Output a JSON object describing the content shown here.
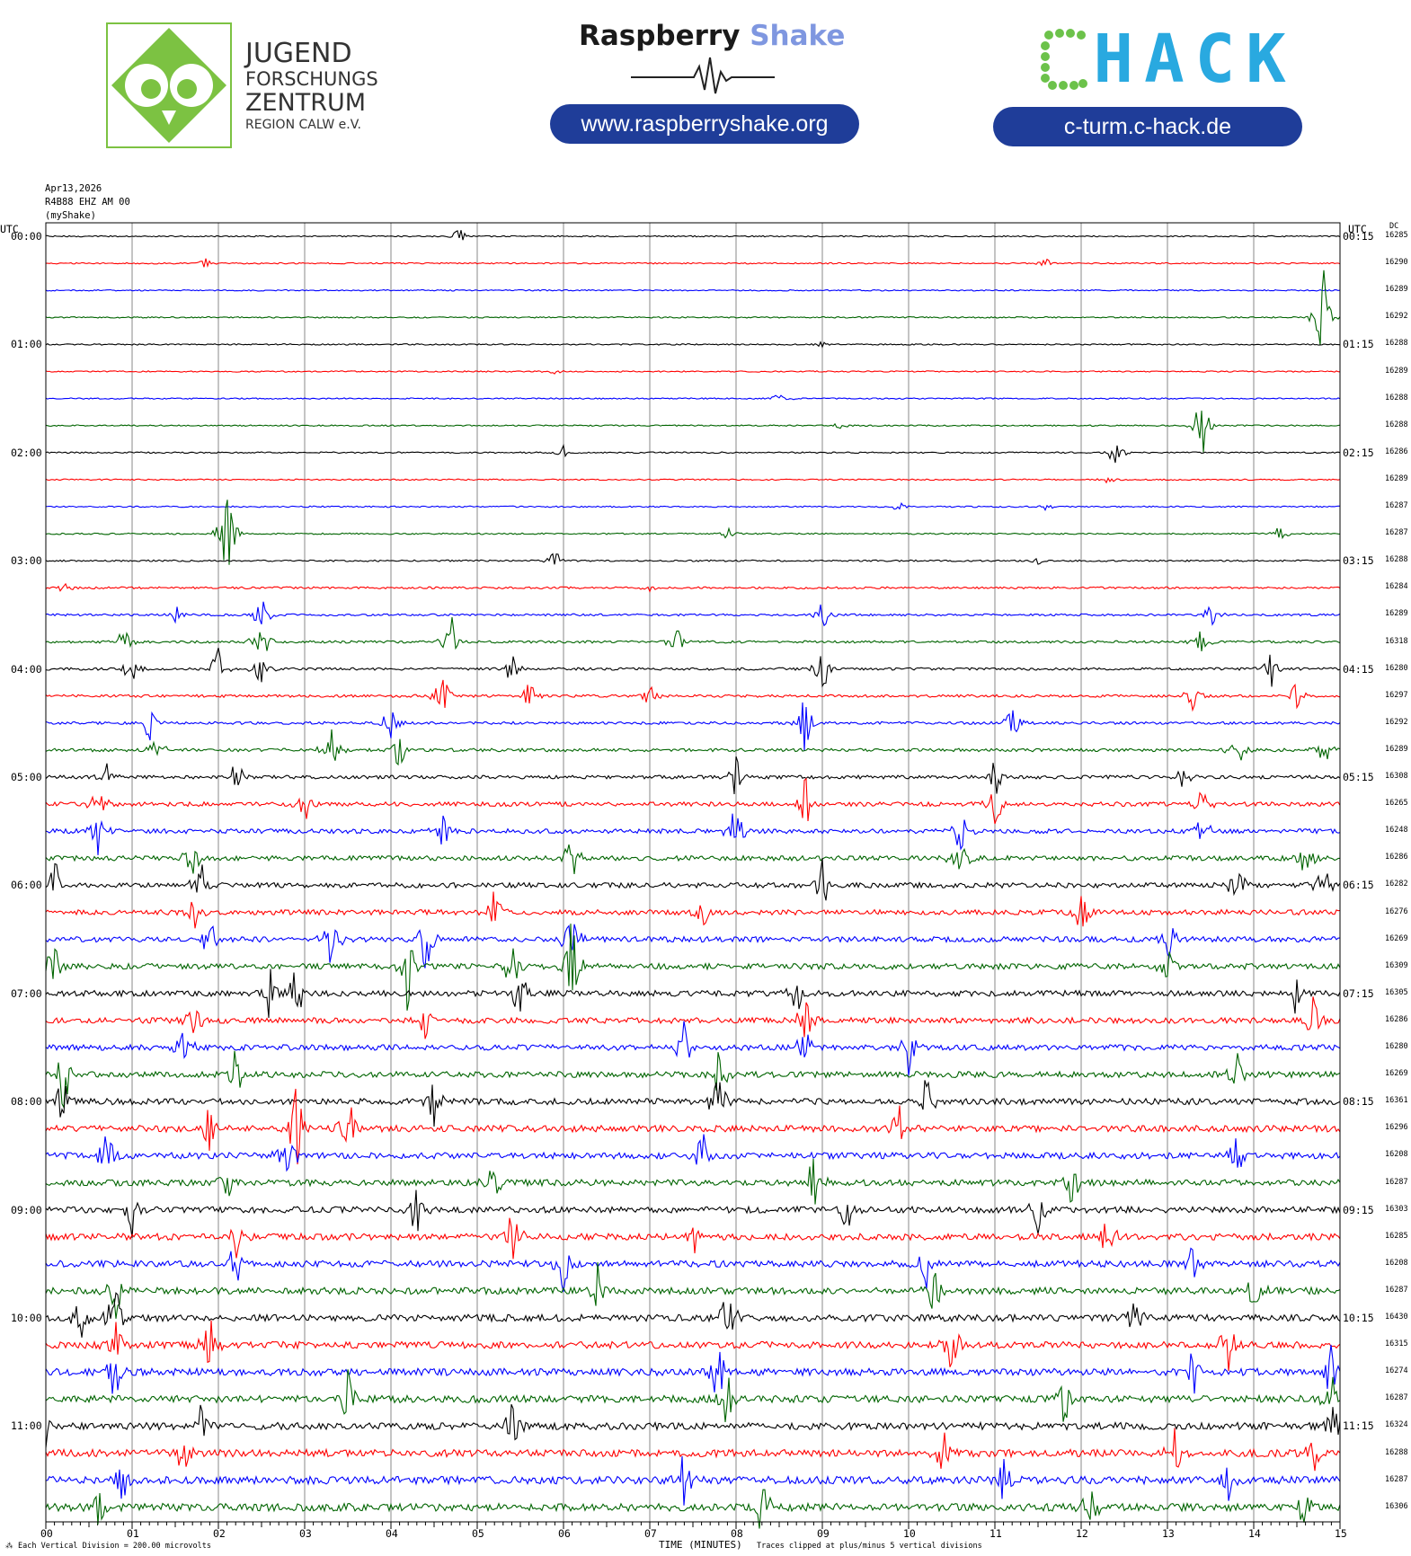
{
  "header": {
    "jfz_lines": [
      "JUGEND",
      "FORSCHUNGS",
      "ZENTRUM",
      "REGION CALW e.V."
    ],
    "rs_title_main": "Raspberry",
    "rs_title_accent": "Shake",
    "rs_url": "www.raspberryshake.org",
    "chack_logo_text": "CHACK",
    "chack_url": "c-turm.c-hack.de",
    "colors": {
      "pill": "#1f3d99",
      "jfz_green": "#7cc242",
      "rs_accent": "#7f97e0",
      "chack_green": "#6cc24a",
      "chack_blue": "#29a9e0"
    }
  },
  "meta": {
    "date": "Apr13,2026",
    "station": "R4B88 EHZ AM 00",
    "source": "(myShake)"
  },
  "footer": {
    "scale_note": "Each Vertical Division = 200.00 microvolts",
    "xlabel": "TIME (MINUTES)",
    "clip_note": "Traces clipped at plus/minus 5 vertical divisions",
    "corner_mark": "⁂"
  },
  "chart_data": {
    "type": "line",
    "title": "",
    "xlabel": "TIME (MINUTES)",
    "ylabel": "",
    "left_axis_label": "UTC",
    "right_axis_label": "UTC",
    "dc_label": "DC",
    "xlim": [
      0,
      15
    ],
    "x_ticks": [
      "00",
      "01",
      "02",
      "03",
      "04",
      "05",
      "06",
      "07",
      "08",
      "09",
      "10",
      "11",
      "12",
      "13",
      "14",
      "15"
    ],
    "grid": true,
    "trace_colors": [
      "#000000",
      "#ff0000",
      "#0000ff",
      "#006400"
    ],
    "left_hour_labels": [
      "00:00",
      "01:00",
      "02:00",
      "03:00",
      "04:00",
      "05:00",
      "06:00",
      "07:00",
      "08:00",
      "09:00",
      "10:00",
      "11:00"
    ],
    "right_hour_labels": [
      "00:15",
      "01:15",
      "02:15",
      "03:15",
      "04:15",
      "05:15",
      "06:15",
      "07:15",
      "08:15",
      "09:15",
      "10:15",
      "11:15"
    ],
    "series": [
      {
        "dc": "16285",
        "activity": 0.05,
        "events": [
          [
            4.8,
            0.6
          ]
        ]
      },
      {
        "dc": "16290",
        "activity": 0.05,
        "events": [
          [
            1.85,
            0.25
          ],
          [
            11.6,
            0.25
          ]
        ]
      },
      {
        "dc": "16289",
        "activity": 0.04,
        "events": []
      },
      {
        "dc": "16292",
        "activity": 0.05,
        "events": [
          [
            14.8,
            2.8
          ]
        ]
      },
      {
        "dc": "16288",
        "activity": 0.05,
        "events": [
          [
            9.0,
            0.2
          ]
        ]
      },
      {
        "dc": "16289",
        "activity": 0.04,
        "events": [
          [
            5.9,
            0.25
          ]
        ]
      },
      {
        "dc": "16288",
        "activity": 0.05,
        "events": [
          [
            8.5,
            0.35
          ]
        ]
      },
      {
        "dc": "16288",
        "activity": 0.05,
        "events": [
          [
            13.4,
            2.2
          ],
          [
            9.2,
            0.2
          ]
        ]
      },
      {
        "dc": "16286",
        "activity": 0.06,
        "events": [
          [
            12.4,
            0.9
          ],
          [
            6.0,
            0.35
          ]
        ]
      },
      {
        "dc": "16289",
        "activity": 0.05,
        "events": [
          [
            12.3,
            0.2
          ]
        ]
      },
      {
        "dc": "16287",
        "activity": 0.06,
        "events": [
          [
            9.9,
            0.35
          ],
          [
            11.6,
            0.35
          ]
        ]
      },
      {
        "dc": "16287",
        "activity": 0.07,
        "events": [
          [
            2.1,
            2.6
          ],
          [
            7.9,
            0.35
          ],
          [
            14.3,
            0.5
          ]
        ]
      },
      {
        "dc": "16288",
        "activity": 0.1,
        "events": [
          [
            5.9,
            0.6
          ],
          [
            11.5,
            0.2
          ]
        ]
      },
      {
        "dc": "16284",
        "activity": 0.18,
        "events": [
          [
            0.2,
            0.4
          ],
          [
            7.0,
            0.3
          ]
        ]
      },
      {
        "dc": "16289",
        "activity": 0.2,
        "events": [
          [
            1.5,
            0.5
          ],
          [
            2.5,
            1.2
          ],
          [
            9.0,
            1.0
          ],
          [
            13.5,
            0.8
          ]
        ]
      },
      {
        "dc": "16318",
        "activity": 0.25,
        "events": [
          [
            0.9,
            0.8
          ],
          [
            2.5,
            1.4
          ],
          [
            4.7,
            1.4
          ],
          [
            7.3,
            1.0
          ],
          [
            13.4,
            0.8
          ]
        ]
      },
      {
        "dc": "16280",
        "activity": 0.28,
        "events": [
          [
            1.0,
            1.0
          ],
          [
            2.0,
            1.3
          ],
          [
            2.5,
            1.0
          ],
          [
            5.4,
            1.0
          ],
          [
            9.0,
            1.6
          ],
          [
            14.2,
            1.4
          ]
        ]
      },
      {
        "dc": "16297",
        "activity": 0.3,
        "events": [
          [
            4.6,
            1.8
          ],
          [
            5.6,
            1.0
          ],
          [
            7.0,
            0.6
          ],
          [
            13.3,
            1.0
          ],
          [
            14.5,
            0.8
          ]
        ]
      },
      {
        "dc": "16292",
        "activity": 0.3,
        "events": [
          [
            1.2,
            1.0
          ],
          [
            4.0,
            1.2
          ],
          [
            8.8,
            1.8
          ],
          [
            11.2,
            1.0
          ]
        ]
      },
      {
        "dc": "16289",
        "activity": 0.4,
        "events": [
          [
            1.3,
            1.0
          ],
          [
            3.3,
            1.4
          ],
          [
            4.1,
            1.2
          ],
          [
            13.8,
            1.2
          ],
          [
            14.8,
            1.0
          ]
        ]
      },
      {
        "dc": "16308",
        "activity": 0.45,
        "events": [
          [
            0.7,
            1.0
          ],
          [
            2.2,
            1.0
          ],
          [
            8.0,
            1.3
          ],
          [
            11.0,
            1.2
          ],
          [
            13.2,
            1.0
          ]
        ]
      },
      {
        "dc": "16265",
        "activity": 0.6,
        "events": [
          [
            0.6,
            1.2
          ],
          [
            3.0,
            1.0
          ],
          [
            8.8,
            1.6
          ],
          [
            11.0,
            1.3
          ],
          [
            13.4,
            1.3
          ]
        ]
      },
      {
        "dc": "16248",
        "activity": 0.65,
        "events": [
          [
            0.6,
            1.4
          ],
          [
            4.6,
            1.2
          ],
          [
            8.0,
            1.5
          ],
          [
            10.6,
            1.3
          ],
          [
            13.4,
            1.4
          ]
        ]
      },
      {
        "dc": "16286",
        "activity": 0.7,
        "events": [
          [
            1.7,
            1.4
          ],
          [
            6.1,
            1.5
          ],
          [
            10.6,
            1.3
          ],
          [
            14.6,
            1.4
          ]
        ]
      },
      {
        "dc": "16282",
        "activity": 0.75,
        "events": [
          [
            0.1,
            1.4
          ],
          [
            1.8,
            1.4
          ],
          [
            9.0,
            1.4
          ],
          [
            13.8,
            1.5
          ],
          [
            14.8,
            1.4
          ]
        ]
      },
      {
        "dc": "16276",
        "activity": 0.75,
        "events": [
          [
            1.7,
            1.4
          ],
          [
            5.2,
            1.3
          ],
          [
            7.6,
            1.3
          ],
          [
            12.0,
            1.3
          ]
        ]
      },
      {
        "dc": "16269",
        "activity": 0.8,
        "events": [
          [
            1.9,
            1.4
          ],
          [
            3.3,
            1.6
          ],
          [
            4.4,
            2.0
          ],
          [
            6.1,
            1.8
          ],
          [
            13.0,
            1.3
          ]
        ]
      },
      {
        "dc": "16309",
        "activity": 0.85,
        "events": [
          [
            0.1,
            1.4
          ],
          [
            4.2,
            2.6
          ],
          [
            6.1,
            3.0
          ],
          [
            5.4,
            1.6
          ],
          [
            13.0,
            1.3
          ]
        ]
      },
      {
        "dc": "16305",
        "activity": 0.85,
        "events": [
          [
            2.6,
            1.4
          ],
          [
            2.9,
            1.6
          ],
          [
            5.5,
            1.6
          ],
          [
            8.7,
            1.4
          ],
          [
            14.5,
            1.3
          ]
        ]
      },
      {
        "dc": "16286",
        "activity": 0.85,
        "events": [
          [
            1.7,
            1.6
          ],
          [
            4.4,
            1.3
          ],
          [
            8.8,
            1.5
          ],
          [
            14.7,
            1.4
          ]
        ]
      },
      {
        "dc": "16280",
        "activity": 0.85,
        "events": [
          [
            1.6,
            1.3
          ],
          [
            7.4,
            1.4
          ],
          [
            8.8,
            1.6
          ],
          [
            10.0,
            1.3
          ]
        ]
      },
      {
        "dc": "16269",
        "activity": 0.9,
        "events": [
          [
            0.2,
            2.4
          ],
          [
            2.2,
            1.4
          ],
          [
            7.8,
            1.5
          ],
          [
            13.8,
            1.4
          ]
        ]
      },
      {
        "dc": "16361",
        "activity": 0.95,
        "events": [
          [
            0.2,
            1.8
          ],
          [
            4.5,
            1.5
          ],
          [
            7.8,
            1.8
          ],
          [
            10.2,
            1.3
          ]
        ]
      },
      {
        "dc": "16296",
        "activity": 1.0,
        "events": [
          [
            1.9,
            1.6
          ],
          [
            2.9,
            2.4
          ],
          [
            3.5,
            2.2
          ],
          [
            9.9,
            1.6
          ]
        ]
      },
      {
        "dc": "16208",
        "activity": 0.95,
        "events": [
          [
            0.7,
            1.4
          ],
          [
            2.8,
            2.0
          ],
          [
            7.6,
            1.4
          ],
          [
            13.8,
            1.3
          ]
        ]
      },
      {
        "dc": "16287",
        "activity": 0.95,
        "events": [
          [
            2.1,
            1.6
          ],
          [
            5.2,
            1.4
          ],
          [
            8.9,
            1.6
          ],
          [
            11.9,
            1.4
          ]
        ]
      },
      {
        "dc": "16303",
        "activity": 0.95,
        "events": [
          [
            1.0,
            1.4
          ],
          [
            4.3,
            1.6
          ],
          [
            9.3,
            1.4
          ],
          [
            11.5,
            1.4
          ]
        ]
      },
      {
        "dc": "16285",
        "activity": 1.0,
        "events": [
          [
            2.2,
            1.3
          ],
          [
            5.4,
            1.6
          ],
          [
            7.5,
            1.4
          ],
          [
            12.3,
            1.4
          ]
        ]
      },
      {
        "dc": "16208",
        "activity": 1.0,
        "events": [
          [
            2.2,
            1.4
          ],
          [
            6.0,
            1.6
          ],
          [
            10.2,
            1.3
          ],
          [
            13.3,
            1.5
          ]
        ]
      },
      {
        "dc": "16287",
        "activity": 1.05,
        "events": [
          [
            0.8,
            1.8
          ],
          [
            6.4,
            1.4
          ],
          [
            10.3,
            1.6
          ],
          [
            14.0,
            1.3
          ]
        ]
      },
      {
        "dc": "16430",
        "activity": 1.05,
        "events": [
          [
            0.8,
            2.2
          ],
          [
            0.4,
            1.6
          ],
          [
            7.9,
            1.7
          ],
          [
            12.6,
            1.4
          ]
        ]
      },
      {
        "dc": "16315",
        "activity": 1.05,
        "events": [
          [
            0.8,
            1.6
          ],
          [
            1.9,
            1.5
          ],
          [
            10.5,
            1.8
          ],
          [
            13.7,
            1.5
          ]
        ]
      },
      {
        "dc": "16274",
        "activity": 1.1,
        "events": [
          [
            0.8,
            1.6
          ],
          [
            7.8,
            2.0
          ],
          [
            13.3,
            1.4
          ],
          [
            14.9,
            1.6
          ]
        ]
      },
      {
        "dc": "16287",
        "activity": 1.1,
        "events": [
          [
            3.5,
            1.5
          ],
          [
            7.9,
            1.8
          ],
          [
            11.8,
            1.5
          ],
          [
            14.9,
            1.5
          ]
        ]
      },
      {
        "dc": "16324",
        "activity": 1.1,
        "events": [
          [
            0.0,
            1.4
          ],
          [
            1.8,
            1.5
          ],
          [
            5.4,
            1.5
          ],
          [
            14.9,
            1.6
          ]
        ]
      },
      {
        "dc": "16288",
        "activity": 1.15,
        "events": [
          [
            1.6,
            1.4
          ],
          [
            10.4,
            1.5
          ],
          [
            13.1,
            1.6
          ],
          [
            14.7,
            1.3
          ]
        ]
      },
      {
        "dc": "16287",
        "activity": 1.2,
        "events": [
          [
            0.9,
            1.5
          ],
          [
            7.4,
            1.8
          ],
          [
            11.1,
            1.4
          ],
          [
            13.7,
            1.4
          ]
        ]
      },
      {
        "dc": "16306",
        "activity": 1.2,
        "events": [
          [
            0.6,
            1.4
          ],
          [
            8.3,
            1.6
          ],
          [
            12.1,
            1.5
          ],
          [
            14.6,
            1.5
          ]
        ]
      }
    ]
  }
}
